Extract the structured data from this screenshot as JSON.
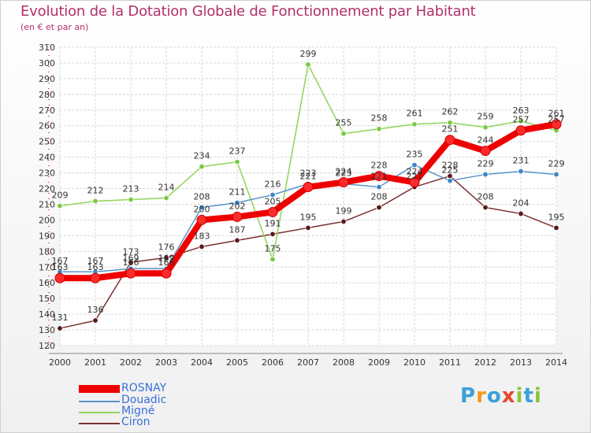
{
  "header": {
    "title": "Evolution de la Dotation Globale de Fonctionnement par Habitant",
    "subtitle": "(en € et par an)"
  },
  "logo": {
    "text": "Proxiti",
    "letters": [
      "P",
      "r",
      "o",
      "x",
      "i",
      "t",
      "i"
    ],
    "colors": [
      "#3aa0d8",
      "#f39a1d",
      "#3aa0d8",
      "#e8462e",
      "#8bc43f",
      "#3aa0d8",
      "#8bc43f"
    ]
  },
  "chart_data": {
    "type": "line",
    "title": "Evolution de la Dotation Globale de Fonctionnement par Habitant",
    "subtitle": "(en € et par an)",
    "xlabel": "",
    "ylabel": "",
    "x": [
      "2000",
      "2001",
      "2002",
      "2003",
      "2004",
      "2005",
      "2006",
      "2007",
      "2008",
      "2009",
      "2010",
      "2011",
      "2012",
      "2013",
      "2014"
    ],
    "ylim": [
      120,
      310
    ],
    "yticks": [
      120,
      130,
      140,
      150,
      160,
      170,
      180,
      190,
      200,
      210,
      220,
      230,
      240,
      250,
      260,
      270,
      280,
      290,
      300,
      310
    ],
    "grid": true,
    "legend_position": "bottom-left",
    "series": [
      {
        "name": "ROSNAY",
        "color": "#ee0000",
        "dot": "#ff2a2a",
        "values": [
          163,
          163,
          166,
          166,
          200,
          202,
          205,
          221,
          224,
          228,
          224,
          251,
          244,
          257,
          261
        ]
      },
      {
        "name": "Douadic",
        "color": "#5a93c8",
        "dot": "#3a86c8",
        "values": [
          167,
          167,
          169,
          169,
          208,
          211,
          216,
          223,
          223,
          221,
          235,
          225,
          229,
          231,
          229
        ]
      },
      {
        "name": "Migné",
        "color": "#8fd45a",
        "dot": "#7ac943",
        "values": [
          209,
          212,
          213,
          214,
          234,
          237,
          175,
          299,
          255,
          258,
          261,
          262,
          259,
          263,
          257
        ]
      },
      {
        "name": "Ciron",
        "color": "#7a3030",
        "dot": "#5a1a1a",
        "values": [
          131,
          136,
          173,
          176,
          183,
          187,
          191,
          195,
          199,
          208,
          221,
          228,
          208,
          204,
          195
        ]
      }
    ],
    "data_labels": {
      "ROSNAY": [
        "163",
        "163",
        "166",
        "166",
        "200",
        "202",
        "205",
        "221",
        "224",
        "228",
        "224",
        "251",
        "244",
        "257",
        "261"
      ],
      "Douadic": [
        "167",
        "167",
        "169",
        "169",
        "208",
        "211",
        "216",
        "223",
        "223",
        "221",
        "235",
        "225",
        "229",
        "231",
        "229"
      ],
      "Migné": [
        "209",
        "212",
        "213",
        "214",
        "234",
        "237",
        "175",
        "299",
        "255",
        "258",
        "261",
        "262",
        "259",
        "263",
        "257"
      ],
      "Ciron": [
        "131",
        "136",
        "173",
        "176",
        "183",
        "187",
        "191",
        "195",
        "199",
        "208",
        "221",
        "228",
        "208",
        "204",
        "195"
      ]
    }
  }
}
